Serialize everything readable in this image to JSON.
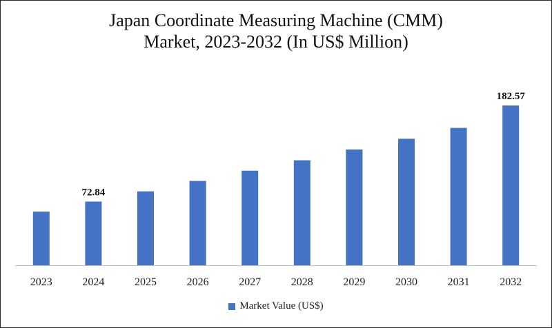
{
  "chart_data": {
    "type": "bar",
    "title_line1": "Japan Coordinate Measuring Machine (CMM)",
    "title_line2": "Market, 2023-2032 (In US$ Million)",
    "categories": [
      "2023",
      "2024",
      "2025",
      "2026",
      "2027",
      "2028",
      "2029",
      "2030",
      "2031",
      "2032"
    ],
    "series": [
      {
        "name": "Market Value (US$)",
        "color": "#4472c4",
        "values": [
          61.3,
          72.84,
          84.5,
          96.4,
          108.1,
          120.0,
          132.4,
          144.6,
          157.0,
          182.57
        ]
      }
    ],
    "data_labels": [
      {
        "category": "2024",
        "text": "72.84"
      },
      {
        "category": "2032",
        "text": "182.57"
      }
    ],
    "ylim": [
      0,
      200
    ],
    "xlabel": "",
    "ylabel": "",
    "grid": false,
    "legend_position": "bottom"
  }
}
